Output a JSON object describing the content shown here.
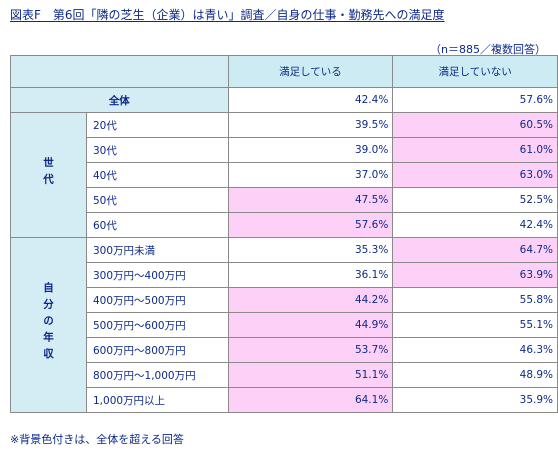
{
  "title": "図表F　第6回「隣の芝生（企業）は青い」調査／自身の仕事・勤務先への満足度",
  "sample_note": "（n＝885／複数回答）",
  "columns": [
    "満足している",
    "満足していない"
  ],
  "total": {
    "label": "全体",
    "satisfied": "42.4%",
    "unsatisfied": "57.6%"
  },
  "groups": {
    "age": {
      "label": "世代",
      "rows": [
        {
          "label": "20代",
          "satisfied": "39.5%",
          "unsatisfied": "60.5%",
          "highlight": "unsatisfied"
        },
        {
          "label": "30代",
          "satisfied": "39.0%",
          "unsatisfied": "61.0%",
          "highlight": "unsatisfied"
        },
        {
          "label": "40代",
          "satisfied": "37.0%",
          "unsatisfied": "63.0%",
          "highlight": "unsatisfied"
        },
        {
          "label": "50代",
          "satisfied": "47.5%",
          "unsatisfied": "52.5%",
          "highlight": "satisfied"
        },
        {
          "label": "60代",
          "satisfied": "57.6%",
          "unsatisfied": "42.4%",
          "highlight": "satisfied"
        }
      ]
    },
    "income": {
      "label": "自分の年収",
      "rows": [
        {
          "label": "300万円未満",
          "satisfied": "35.3%",
          "unsatisfied": "64.7%",
          "highlight": "unsatisfied"
        },
        {
          "label": "300万円〜400万円",
          "satisfied": "36.1%",
          "unsatisfied": "63.9%",
          "highlight": "unsatisfied"
        },
        {
          "label": "400万円〜500万円",
          "satisfied": "44.2%",
          "unsatisfied": "55.8%",
          "highlight": "satisfied"
        },
        {
          "label": "500万円〜600万円",
          "satisfied": "44.9%",
          "unsatisfied": "55.1%",
          "highlight": "satisfied"
        },
        {
          "label": "600万円〜800万円",
          "satisfied": "53.7%",
          "unsatisfied": "46.3%",
          "highlight": "satisfied"
        },
        {
          "label": "800万円〜1,000万円",
          "satisfied": "51.1%",
          "unsatisfied": "48.9%",
          "highlight": "satisfied"
        },
        {
          "label": "1,000万円以上",
          "satisfied": "64.1%",
          "unsatisfied": "35.9%",
          "highlight": "satisfied"
        }
      ]
    }
  },
  "footnote": "※背景色付きは、全体を超える回答",
  "colors": {
    "header_bg": "#ccebf2",
    "highlight_bg": "#fdd0f7",
    "text": "#0d2a8a",
    "border": "#8a8a8a"
  }
}
